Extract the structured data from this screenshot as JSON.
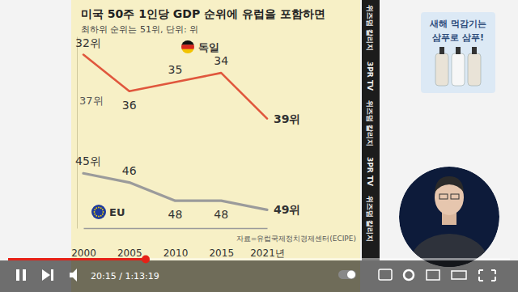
{
  "chart_data": {
    "type": "line",
    "title": "미국 50주 1인당 GDP 순위에 유럽을 포함하면",
    "subtitle": "최하위 순위는 51위, 단위: 위",
    "source": "자료=유럽국제정치경제센터(ECIPE)",
    "categories": [
      "2000",
      "2005",
      "2010",
      "2015",
      "2021년"
    ],
    "series": [
      {
        "name": "독일",
        "color": "#e0573d",
        "values": [
          32,
          36,
          35,
          34,
          39
        ],
        "value_labels": [
          "32위",
          "36",
          "35",
          "34",
          "39위"
        ]
      },
      {
        "name": "EU",
        "color": "#9b9b9b",
        "values": [
          45,
          46,
          48,
          48,
          49
        ],
        "value_labels": [
          "45위",
          "46",
          "48",
          "48",
          "49위"
        ]
      }
    ],
    "ylim": [
      51,
      30
    ],
    "yticks": [],
    "tick_labels": "x",
    "data_labels": true,
    "annotations": [
      {
        "text": "37위",
        "y": 37
      }
    ]
  },
  "player": {
    "time": "20:15 / 1:13:19"
  },
  "channel_strip": [
    "위즈덤 칼리지",
    "3PR TV"
  ],
  "ad": [
    "새해 먹감기는",
    "삼푸로 삼푸!"
  ]
}
